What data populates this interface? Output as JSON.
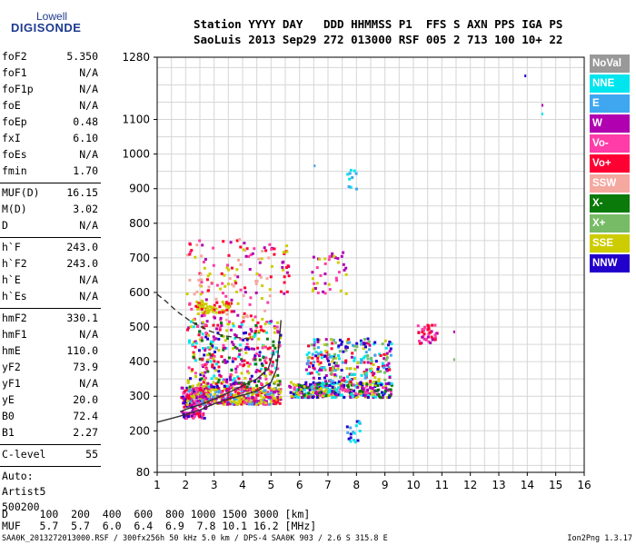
{
  "logo": {
    "line1": "Lowell",
    "line2": "DIGISONDE"
  },
  "header": {
    "line1": "Station YYYY DAY   DDD HHMMSS P1  FFS S AXN PPS IGA PS",
    "line2": "SaoLuis 2013 Sep29 272 013000 RSF 005 2 713 100 10+ 22"
  },
  "params": {
    "g1": [
      {
        "label": "foF2",
        "value": "5.350"
      },
      {
        "label": "foF1",
        "value": "N/A"
      },
      {
        "label": "foF1p",
        "value": "N/A"
      },
      {
        "label": "foE",
        "value": "N/A"
      },
      {
        "label": "foEp",
        "value": "0.48"
      },
      {
        "label": "fxI",
        "value": "6.10"
      },
      {
        "label": "foEs",
        "value": "N/A"
      },
      {
        "label": "fmin",
        "value": "1.70"
      }
    ],
    "g2": [
      {
        "label": "MUF(D)",
        "value": "16.15"
      },
      {
        "label": "M(D)",
        "value": "3.02"
      },
      {
        "label": "D",
        "value": "N/A"
      }
    ],
    "g3": [
      {
        "label": "h`F",
        "value": "243.0"
      },
      {
        "label": "h`F2",
        "value": "243.0"
      },
      {
        "label": "h`E",
        "value": "N/A"
      },
      {
        "label": "h`Es",
        "value": "N/A"
      }
    ],
    "g4": [
      {
        "label": "hmF2",
        "value": "330.1"
      },
      {
        "label": "hmF1",
        "value": "N/A"
      },
      {
        "label": "hmE",
        "value": "110.0"
      },
      {
        "label": "yF2",
        "value": "73.9"
      },
      {
        "label": "yF1",
        "value": "N/A"
      },
      {
        "label": "yE",
        "value": "20.0"
      },
      {
        "label": "B0",
        "value": "72.4"
      },
      {
        "label": "B1",
        "value": "2.27"
      }
    ],
    "g5": [
      {
        "label": "C-level",
        "value": "55"
      }
    ],
    "auto": [
      "Auto:",
      "Artist5",
      "500200"
    ]
  },
  "legend": [
    {
      "label": "NoVal",
      "color": "#999999"
    },
    {
      "label": "NNE",
      "color": "#00e5ee"
    },
    {
      "label": "E",
      "color": "#3fa7f0"
    },
    {
      "label": "W",
      "color": "#b000b0"
    },
    {
      "label": "Vo-",
      "color": "#ff3ca8"
    },
    {
      "label": "Vo+",
      "color": "#ff0033"
    },
    {
      "label": "SSW",
      "color": "#f4a8a0"
    },
    {
      "label": "X-",
      "color": "#0a7a0a"
    },
    {
      "label": "X+",
      "color": "#77bb66"
    },
    {
      "label": "SSE",
      "color": "#cccc00"
    },
    {
      "label": "NNW",
      "color": "#2200cc"
    }
  ],
  "bottom": {
    "dline": "D     100  200  400  600  800 1000 1500 3000 [km]",
    "mufline": "MUF   5.7  5.7  6.0  6.4  6.9  7.8 10.1 16.2 [MHz]"
  },
  "footer": "SAA0K_2013272013000.RSF / 300fx256h 50 kHz 5.0 km / DPS-4 SAA0K 903 / 2.6 S 315.8 E",
  "version": "Ion2Png 1.3.17",
  "chart_data": {
    "type": "scatter",
    "xlim": [
      1,
      16
    ],
    "ylim": [
      80,
      1280
    ],
    "x_ticks": [
      1,
      2,
      3,
      4,
      5,
      6,
      7,
      8,
      9,
      10,
      11,
      12,
      13,
      14,
      15,
      16
    ],
    "y_ticks": [
      80,
      200,
      300,
      400,
      500,
      600,
      700,
      800,
      900,
      1000,
      1100,
      1280
    ],
    "grid": true,
    "clusters": [
      {
        "fx": [
          1.8,
          2.7
        ],
        "hy": [
          240,
          330
        ],
        "n": 160,
        "colors": [
          "#ff0033",
          "#b000b0",
          "#ff3ca8",
          "#2200cc"
        ]
      },
      {
        "fx": [
          2.0,
          5.3
        ],
        "hy": [
          280,
          330
        ],
        "n": 420,
        "colors": [
          "#cccc00",
          "#cccc00",
          "#ff0033",
          "#b000b0",
          "#ff3ca8",
          "#3fa7f0"
        ]
      },
      {
        "fx": [
          2.0,
          5.3
        ],
        "hy": [
          330,
          520
        ],
        "n": 380,
        "colors": [
          "#ff0033",
          "#b000b0",
          "#ff3ca8",
          "#2200cc",
          "#00e5ee",
          "#cccc00",
          "#0a7a0a"
        ]
      },
      {
        "fx": [
          2.0,
          5.1
        ],
        "hy": [
          520,
          760
        ],
        "n": 150,
        "colors": [
          "#ff0033",
          "#b000b0",
          "#ff3ca8",
          "#cccc00",
          "#f4a8a0"
        ]
      },
      {
        "fx": [
          2.3,
          3.6
        ],
        "hy": [
          545,
          580
        ],
        "n": 70,
        "colors": [
          "#cccc00",
          "#cccc00",
          "#ff0033"
        ]
      },
      {
        "fx": [
          5.6,
          9.2
        ],
        "hy": [
          300,
          345
        ],
        "n": 380,
        "colors": [
          "#2200cc",
          "#b000b0",
          "#cccc00",
          "#00e5ee",
          "#ff3ca8",
          "#0a7a0a"
        ]
      },
      {
        "fx": [
          6.2,
          9.2
        ],
        "hy": [
          345,
          470
        ],
        "n": 260,
        "colors": [
          "#b000b0",
          "#ff0033",
          "#2200cc",
          "#00e5ee",
          "#cccc00",
          "#3fa7f0",
          "#77bb66"
        ]
      },
      {
        "fx": [
          6.4,
          7.6
        ],
        "hy": [
          600,
          720
        ],
        "n": 40,
        "colors": [
          "#b000b0",
          "#ff3ca8",
          "#cccc00"
        ]
      },
      {
        "fx": [
          7.6,
          8.1
        ],
        "hy": [
          170,
          240
        ],
        "n": 18,
        "colors": [
          "#3fa7f0",
          "#00e5ee",
          "#2200cc"
        ]
      },
      {
        "fx": [
          7.6,
          8.0
        ],
        "hy": [
          900,
          960
        ],
        "n": 10,
        "colors": [
          "#3fa7f0",
          "#00e5ee"
        ]
      },
      {
        "fx": [
          10.1,
          10.8
        ],
        "hy": [
          450,
          510
        ],
        "n": 40,
        "colors": [
          "#ff0033",
          "#b000b0",
          "#ff3ca8"
        ]
      },
      {
        "fx": [
          5.3,
          5.6
        ],
        "hy": [
          600,
          740
        ],
        "n": 20,
        "colors": [
          "#ff0033",
          "#b000b0",
          "#cccc00"
        ]
      }
    ],
    "isolated_points": [
      {
        "x": 13.9,
        "y": 1230,
        "color": "#2200cc"
      },
      {
        "x": 14.5,
        "y": 1145,
        "color": "#b000b0"
      },
      {
        "x": 14.5,
        "y": 1120,
        "color": "#00e5ee"
      },
      {
        "x": 11.4,
        "y": 410,
        "color": "#77bb66"
      },
      {
        "x": 11.4,
        "y": 490,
        "color": "#b000b0"
      },
      {
        "x": 6.5,
        "y": 970,
        "color": "#3fa7f0"
      }
    ],
    "profile_solid": {
      "x": [
        1.0,
        1.6,
        2.0,
        2.5,
        3.0,
        3.5,
        4.0,
        4.5,
        5.0,
        5.2,
        5.35
      ],
      "y": [
        225,
        238,
        247,
        260,
        278,
        292,
        303,
        315,
        340,
        380,
        520
      ]
    },
    "profile_upper": {
      "x": [
        1.8,
        2.0,
        2.5,
        3.0,
        3.5,
        4.0,
        4.5,
        4.9,
        5.1
      ],
      "y": [
        255,
        262,
        275,
        292,
        310,
        330,
        350,
        380,
        430
      ]
    },
    "profile_dashed": {
      "x": [
        1.0,
        1.3,
        1.7,
        2.2,
        2.8,
        3.3,
        3.8,
        4.3
      ],
      "y": [
        595,
        575,
        545,
        515,
        490,
        475,
        470,
        465
      ]
    }
  }
}
